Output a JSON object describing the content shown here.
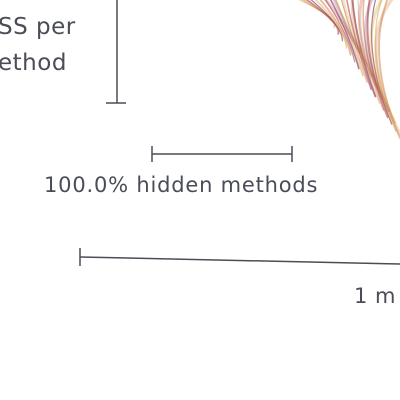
{
  "colors": {
    "ink": "#4a4d57",
    "fan_gold": "#c99a2b",
    "fan_orange": "#d07a3b",
    "fan_crimson": "#b2434c",
    "fan_purple": "#8b3f66"
  },
  "chart_data": {
    "type": "other",
    "title": "",
    "scale_legends": [
      {
        "id": "loss-per-method",
        "label_lines": [
          "SS per",
          "ethod"
        ],
        "orientation": "vertical"
      },
      {
        "id": "hidden-methods",
        "label": "100.0% hidden methods",
        "value": 100.0,
        "unit": "%",
        "orientation": "horizontal"
      },
      {
        "id": "methods-scale",
        "label": "1 m",
        "value": 1,
        "orientation": "horizontal"
      }
    ],
    "fan_rays": {
      "count": 18,
      "colors": [
        "#c99a2b",
        "#d07a3b",
        "#b2434c",
        "#8b3f66"
      ]
    }
  }
}
